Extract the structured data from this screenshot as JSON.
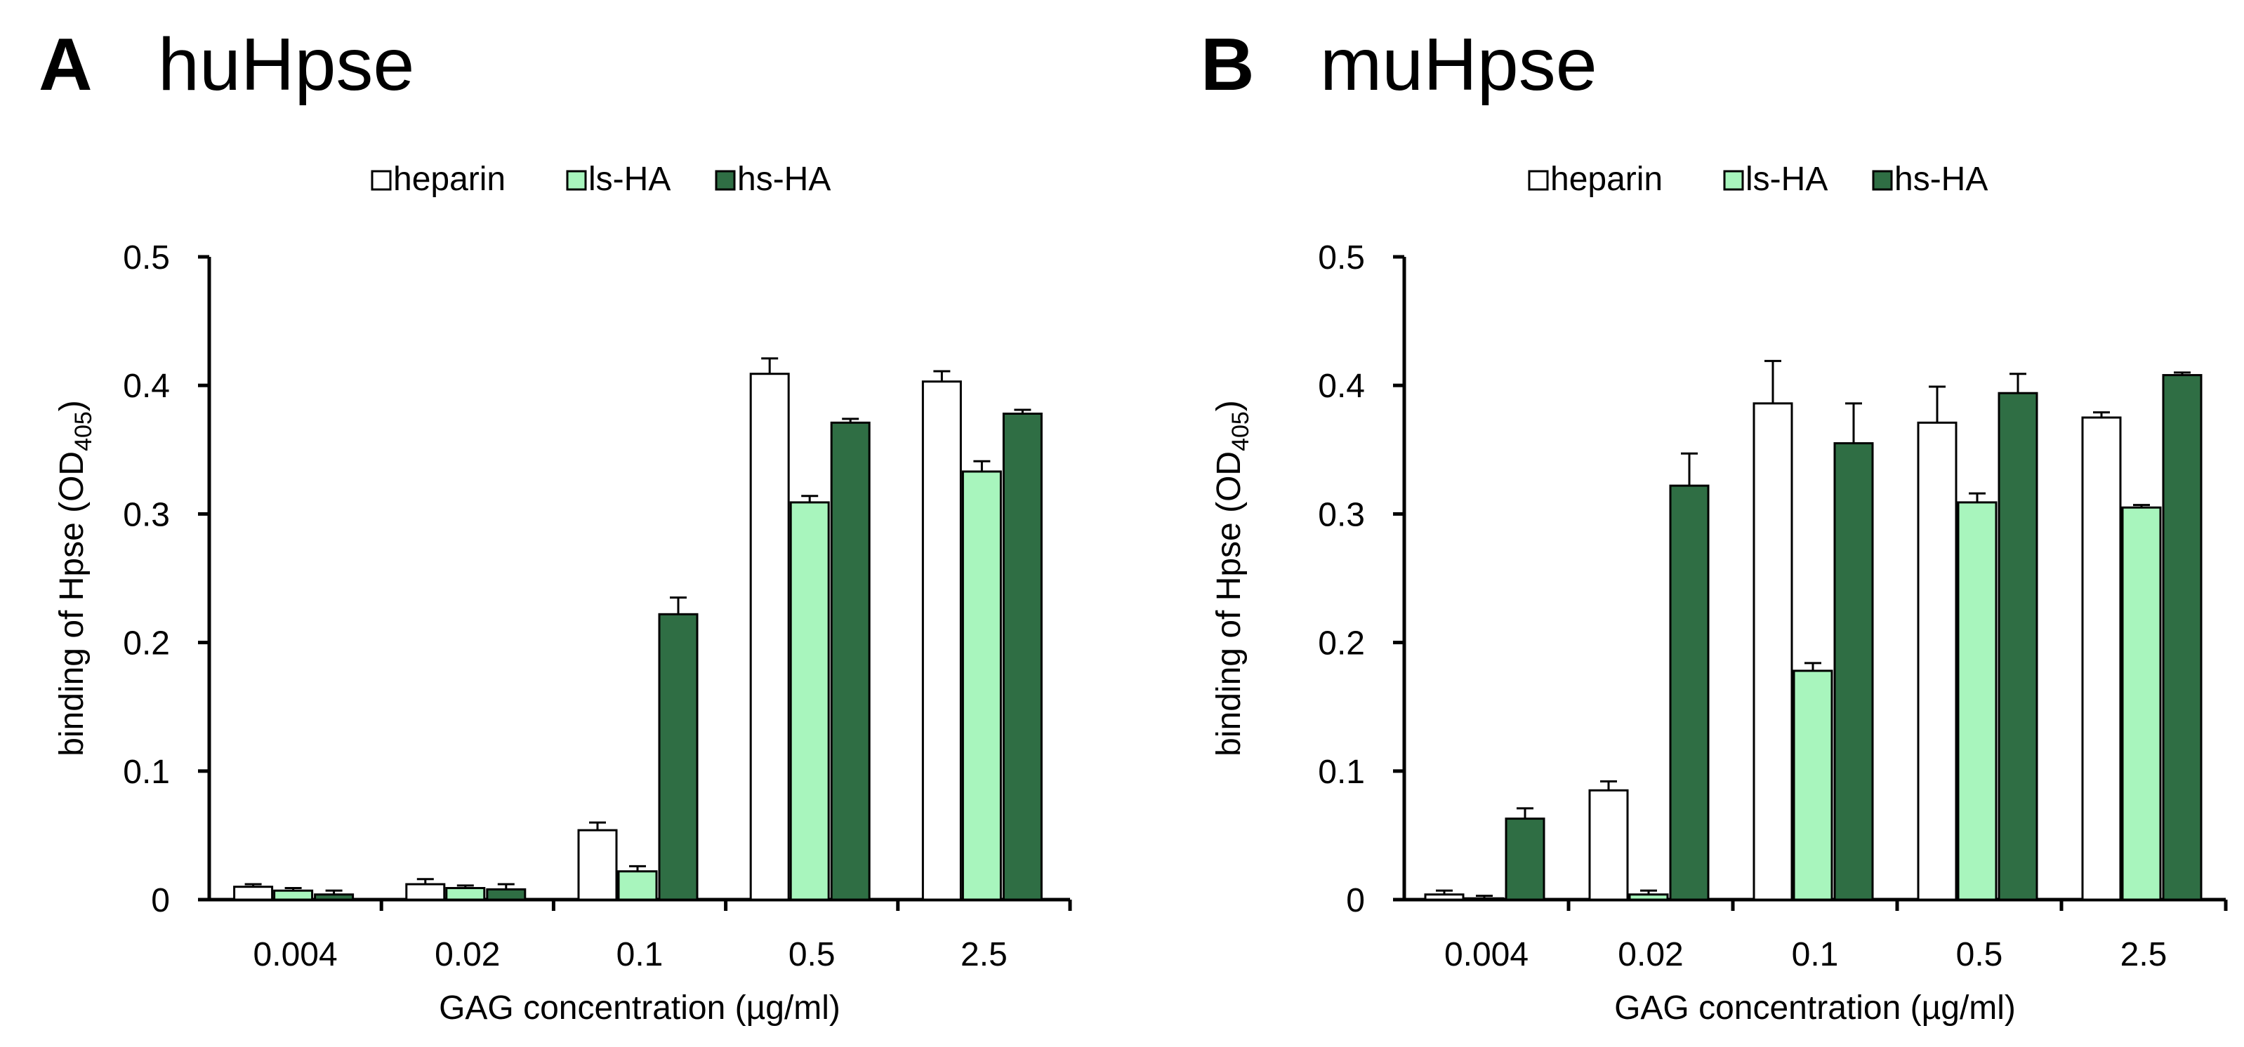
{
  "chart_data": [
    {
      "type": "bar",
      "panel_letter": "A",
      "title": "huHpse",
      "xlabel": "GAG concentration (µg/ml)",
      "ylabel_main": "binding of Hpse (OD",
      "ylabel_sub": "405",
      "ylabel_close": ")",
      "ylim": [
        0,
        0.5
      ],
      "yticks": [
        "0",
        "0.1",
        "0.2",
        "0.3",
        "0.4",
        "0.5"
      ],
      "categories": [
        "0.004",
        "0.02",
        "0.1",
        "0.5",
        "2.5"
      ],
      "legend_position": "top-center",
      "series": [
        {
          "name": "heparin",
          "values": [
            0.01,
            0.012,
            0.054,
            0.409,
            0.403
          ],
          "errors": [
            0.002,
            0.004,
            0.006,
            0.012,
            0.008
          ]
        },
        {
          "name": "ls-HA",
          "values": [
            0.007,
            0.009,
            0.022,
            0.309,
            0.333
          ],
          "errors": [
            0.002,
            0.002,
            0.004,
            0.005,
            0.008
          ]
        },
        {
          "name": "hs-HA",
          "values": [
            0.004,
            0.008,
            0.222,
            0.371,
            0.378
          ],
          "errors": [
            0.003,
            0.004,
            0.013,
            0.003,
            0.003
          ]
        }
      ]
    },
    {
      "type": "bar",
      "panel_letter": "B",
      "title": "muHpse",
      "xlabel": "GAG concentration (µg/ml)",
      "ylabel_main": "binding of Hpse (OD",
      "ylabel_sub": "405",
      "ylabel_close": ")",
      "ylim": [
        0,
        0.5
      ],
      "yticks": [
        "0",
        "0.1",
        "0.2",
        "0.3",
        "0.4",
        "0.5"
      ],
      "categories": [
        "0.004",
        "0.02",
        "0.1",
        "0.5",
        "2.5"
      ],
      "legend_position": "top-center",
      "series": [
        {
          "name": "heparin",
          "values": [
            0.004,
            0.085,
            0.386,
            0.371,
            0.375
          ],
          "errors": [
            0.003,
            0.007,
            0.033,
            0.028,
            0.004
          ]
        },
        {
          "name": "ls-HA",
          "values": [
            0.001,
            0.004,
            0.178,
            0.309,
            0.305
          ],
          "errors": [
            0.002,
            0.003,
            0.006,
            0.007,
            0.002
          ]
        },
        {
          "name": "hs-HA",
          "values": [
            0.063,
            0.322,
            0.355,
            0.394,
            0.408
          ],
          "errors": [
            0.008,
            0.025,
            0.031,
            0.015,
            0.002
          ]
        }
      ]
    }
  ],
  "colors": {
    "heparin": "#ffffff",
    "ls-HA": "#a8f5bd",
    "hs-HA": "#2f6e44",
    "axis": "#000000"
  }
}
